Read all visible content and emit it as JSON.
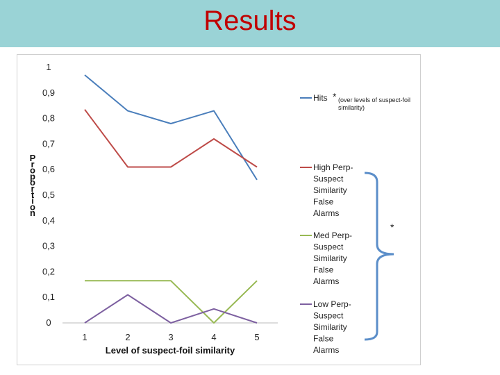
{
  "slide": {
    "title": "Results"
  },
  "chart_data": {
    "type": "line",
    "x": [
      "1",
      "2",
      "3",
      "4",
      "5"
    ],
    "xlabel": "Level of suspect-foil similarity",
    "ylabel": "Proportion",
    "yticks": [
      "0",
      "0,1",
      "0,2",
      "0,3",
      "0,4",
      "0,5",
      "0,6",
      "0,7",
      "0,8",
      "0,9",
      "1"
    ],
    "ylim": [
      0,
      1
    ],
    "grid": false,
    "legend_position": "right",
    "series": [
      {
        "name": "Hits",
        "color": "#4a7ebb",
        "values": [
          0.97,
          0.83,
          0.78,
          0.83,
          0.56
        ]
      },
      {
        "name": "High Perp-Suspect Similarity False Alarms",
        "color": "#be4b48",
        "values": [
          0.835,
          0.61,
          0.61,
          0.72,
          0.61
        ]
      },
      {
        "name": "Med Perp-Suspect Similarity False Alarms",
        "color": "#98b954",
        "values": [
          0.165,
          0.165,
          0.165,
          0.0,
          0.165
        ]
      },
      {
        "name": "Low Perp-Suspect Similarity False Alarms",
        "color": "#7d60a0",
        "values": [
          0.0,
          0.11,
          0.0,
          0.055,
          0.0
        ]
      }
    ],
    "legend": [
      {
        "lines": [
          "Hits"
        ]
      },
      {
        "lines": [
          "High Perp-",
          "Suspect",
          "Similarity",
          "False",
          "Alarms"
        ]
      },
      {
        "lines": [
          "Med Perp-",
          "Suspect",
          "Similarity",
          "False",
          "Alarms"
        ]
      },
      {
        "lines": [
          "Low Perp-",
          "Suspect",
          "Similarity",
          "False",
          "Alarms"
        ]
      }
    ],
    "annotations": {
      "hits_star": "*",
      "hits_note": [
        "(over levels of suspect-foil",
        "similarity)"
      ],
      "bracket_star": "*"
    }
  }
}
